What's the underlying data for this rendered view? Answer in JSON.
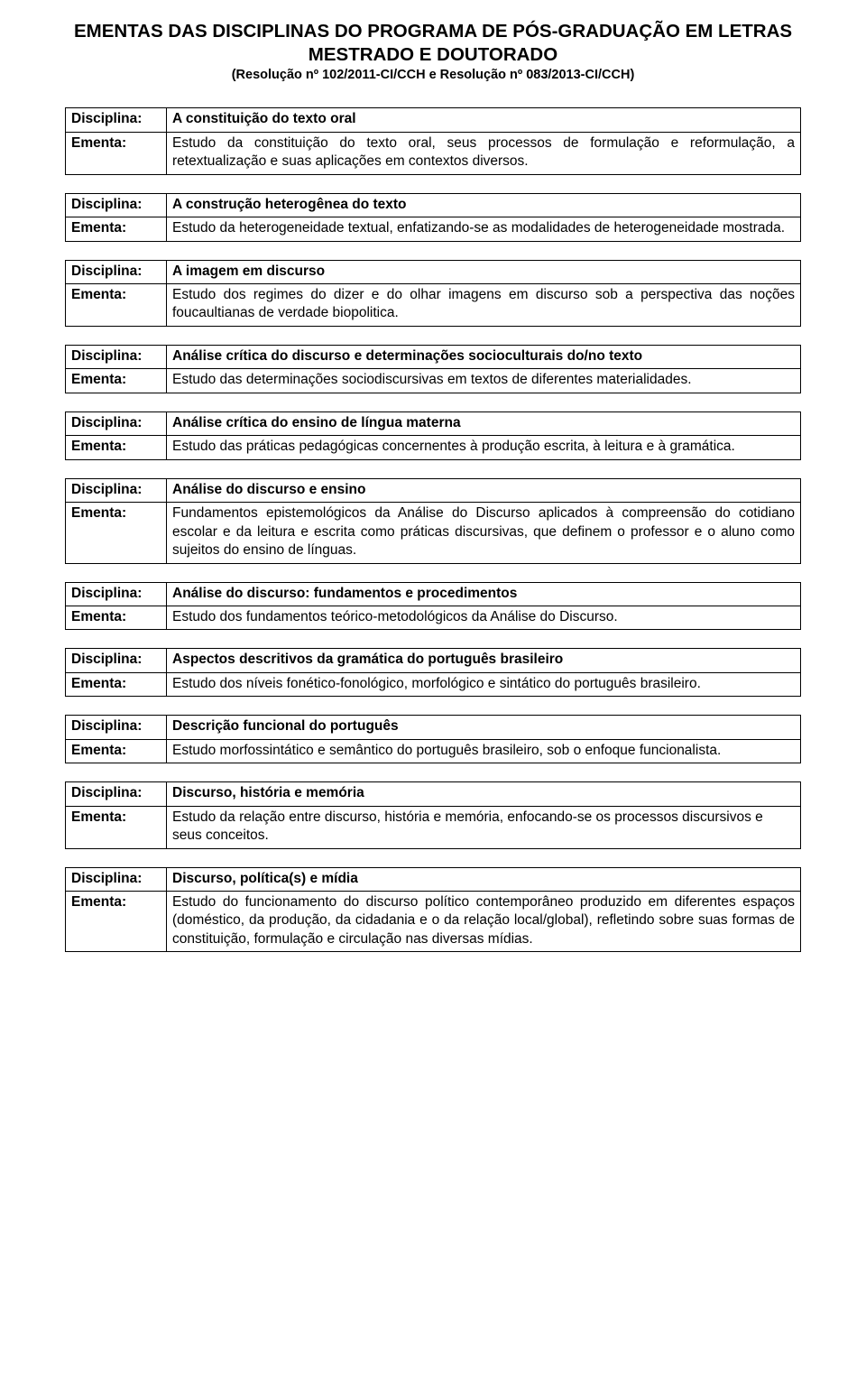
{
  "header": {
    "title": "EMENTAS DAS DISCIPLINAS DO PROGRAMA DE PÓS-GRADUAÇÃO EM LETRAS MESTRADO E DOUTORADO",
    "subtitle": "(Resolução nº 102/2011-CI/CCH e Resolução nº 083/2013-CI/CCH)"
  },
  "labels": {
    "disciplina": "Disciplina:",
    "ementa": "Ementa:"
  },
  "entries": [
    {
      "titulo": "A constituição do texto oral",
      "ementa": "Estudo da constituição do texto oral, seus processos de formulação e reformulação, a retextualização e suas aplicações em contextos diversos.",
      "justify": true
    },
    {
      "titulo": "A construção heterogênea do texto",
      "ementa": "Estudo da heterogeneidade textual, enfatizando-se as modalidades de heterogeneidade mostrada.",
      "justify": false
    },
    {
      "titulo": "A imagem em discurso",
      "ementa": "Estudo dos regimes do dizer e do olhar imagens em discurso sob a perspectiva das noções foucaultianas de verdade biopolitica.",
      "justify": true
    },
    {
      "titulo": "Análise crítica do discurso e determinações socioculturais do/no texto",
      "ementa": "Estudo das determinações sociodiscursivas em textos de diferentes materialidades.",
      "justify": true
    },
    {
      "titulo": "Análise crítica do ensino de língua materna",
      "ementa": "Estudo das práticas pedagógicas concernentes à produção escrita, à leitura e à gramática.",
      "justify": false
    },
    {
      "titulo": "Análise do discurso e ensino",
      "ementa": "Fundamentos epistemológicos da Análise do Discurso aplicados à compreensão do cotidiano escolar e da leitura e escrita como práticas discursivas, que definem o professor e o aluno como sujeitos do ensino de línguas.",
      "justify": true
    },
    {
      "titulo": "Análise do discurso: fundamentos e procedimentos",
      "ementa": "Estudo dos fundamentos teórico-metodológicos da Análise do Discurso.",
      "justify": true
    },
    {
      "titulo": "Aspectos descritivos da gramática do português brasileiro",
      "ementa": "Estudo dos níveis fonético-fonológico, morfológico e sintático do português brasileiro.",
      "justify": true
    },
    {
      "titulo": "Descrição funcional do português",
      "ementa": "Estudo morfossintático e semântico do português brasileiro, sob o enfoque funcionalista.",
      "justify": true
    },
    {
      "titulo": "Discurso, história e memória",
      "ementa": "Estudo da relação entre discurso, história e memória, enfocando-se os processos discursivos e seus conceitos.",
      "justify": false
    },
    {
      "titulo": "Discurso, política(s) e mídia",
      "ementa": "Estudo do funcionamento do discurso político contemporâneo produzido em diferentes espaços (doméstico, da produção, da cidadania e o da relação local/global), refletindo sobre suas formas de constituição, formulação e circulação nas diversas mídias.",
      "justify": true
    }
  ]
}
